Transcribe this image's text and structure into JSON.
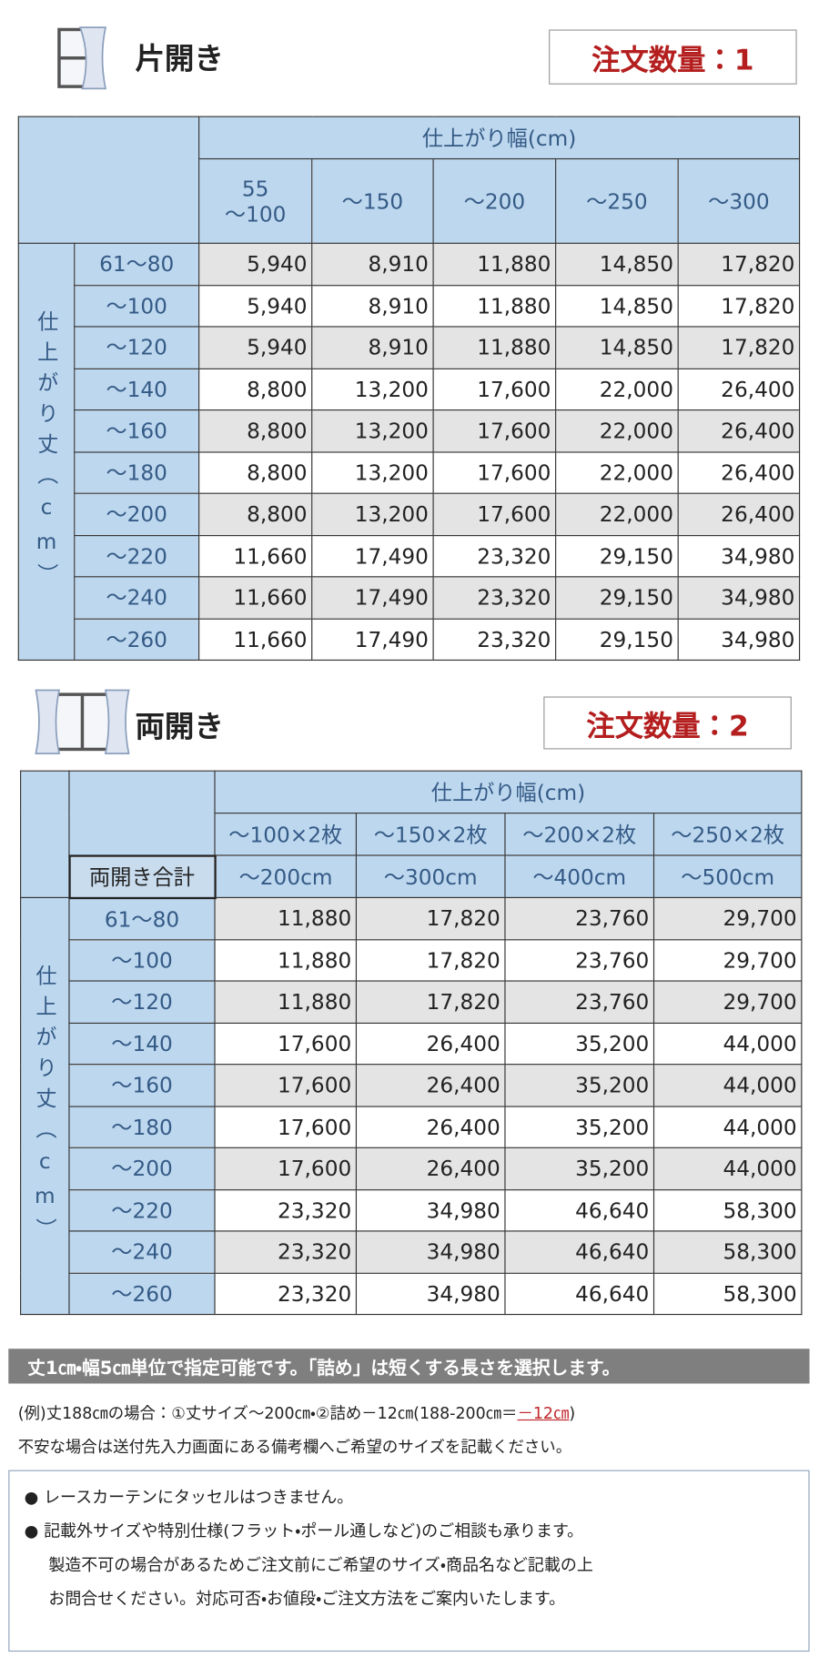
{
  "single": {
    "title": "片開き",
    "order": "注文数量：1",
    "width_header": "仕上がり幅(cm)",
    "height_header": "仕上がり丈（cm）",
    "columns": [
      "55\n～100",
      "～150",
      "～200",
      "～250",
      "～300"
    ],
    "rows": [
      {
        "label": "61～80",
        "prices": [
          "5,940",
          "8,910",
          "11,880",
          "14,850",
          "17,820"
        ]
      },
      {
        "label": "～100",
        "prices": [
          "5,940",
          "8,910",
          "11,880",
          "14,850",
          "17,820"
        ]
      },
      {
        "label": "～120",
        "prices": [
          "5,940",
          "8,910",
          "11,880",
          "14,850",
          "17,820"
        ]
      },
      {
        "label": "～140",
        "prices": [
          "8,800",
          "13,200",
          "17,600",
          "22,000",
          "26,400"
        ]
      },
      {
        "label": "～160",
        "prices": [
          "8,800",
          "13,200",
          "17,600",
          "22,000",
          "26,400"
        ]
      },
      {
        "label": "～180",
        "prices": [
          "8,800",
          "13,200",
          "17,600",
          "22,000",
          "26,400"
        ]
      },
      {
        "label": "～200",
        "prices": [
          "8,800",
          "13,200",
          "17,600",
          "22,000",
          "26,400"
        ]
      },
      {
        "label": "～220",
        "prices": [
          "11,660",
          "17,490",
          "23,320",
          "29,150",
          "34,980"
        ]
      },
      {
        "label": "～240",
        "prices": [
          "11,660",
          "17,490",
          "23,320",
          "29,150",
          "34,980"
        ]
      },
      {
        "label": "～260",
        "prices": [
          "11,660",
          "17,490",
          "23,320",
          "29,150",
          "34,980"
        ]
      }
    ]
  },
  "double": {
    "title": "両開き",
    "order": "注文数量：2",
    "width_header": "仕上がり幅(cm)",
    "height_header": "仕上がり丈（cm）",
    "columns": [
      "～100×2枚",
      "～150×2枚",
      "～200×2枚",
      "～250×2枚"
    ],
    "total_label": "両開き合計",
    "totals": [
      "～200cm",
      "～300cm",
      "～400cm",
      "～500cm"
    ],
    "rows": [
      {
        "label": "61～80",
        "prices": [
          "11,880",
          "17,820",
          "23,760",
          "29,700"
        ]
      },
      {
        "label": "～100",
        "prices": [
          "11,880",
          "17,820",
          "23,760",
          "29,700"
        ]
      },
      {
        "label": "～120",
        "prices": [
          "11,880",
          "17,820",
          "23,760",
          "29,700"
        ]
      },
      {
        "label": "～140",
        "prices": [
          "17,600",
          "26,400",
          "35,200",
          "44,000"
        ]
      },
      {
        "label": "～160",
        "prices": [
          "17,600",
          "26,400",
          "35,200",
          "44,000"
        ]
      },
      {
        "label": "～180",
        "prices": [
          "17,600",
          "26,400",
          "35,200",
          "44,000"
        ]
      },
      {
        "label": "～200",
        "prices": [
          "17,600",
          "26,400",
          "35,200",
          "44,000"
        ]
      },
      {
        "label": "～220",
        "prices": [
          "23,320",
          "34,980",
          "46,640",
          "58,300"
        ]
      },
      {
        "label": "～240",
        "prices": [
          "23,320",
          "34,980",
          "46,640",
          "58,300"
        ]
      },
      {
        "label": "～260",
        "prices": [
          "23,320",
          "34,980",
          "46,640",
          "58,300"
        ]
      }
    ]
  },
  "banner": "丈1㎝・幅5㎝単位で指定可能です。「詰め」は短くする長さを選択します。",
  "example": {
    "text": "(例)丈188㎝の場合：①丈サイズ～200㎝・②詰め－12㎝(188-200㎝＝",
    "highlight": "－12㎝",
    "end": ")"
  },
  "advice": "不安な場合は送付先入力画面にある備考欄へご希望のサイズを記載ください。",
  "notes": [
    "● レースカーテンにタッセルはつきません。",
    "● 記載外サイズや特別仕様(フラット・ポール通しなど)のご相談も承ります。",
    "製造不可の場合があるためご注文前にご希望のサイズ・商品名など記載の上",
    "お問合せください。対応可否・お値段・ご注文方法をご案内いたします。"
  ]
}
